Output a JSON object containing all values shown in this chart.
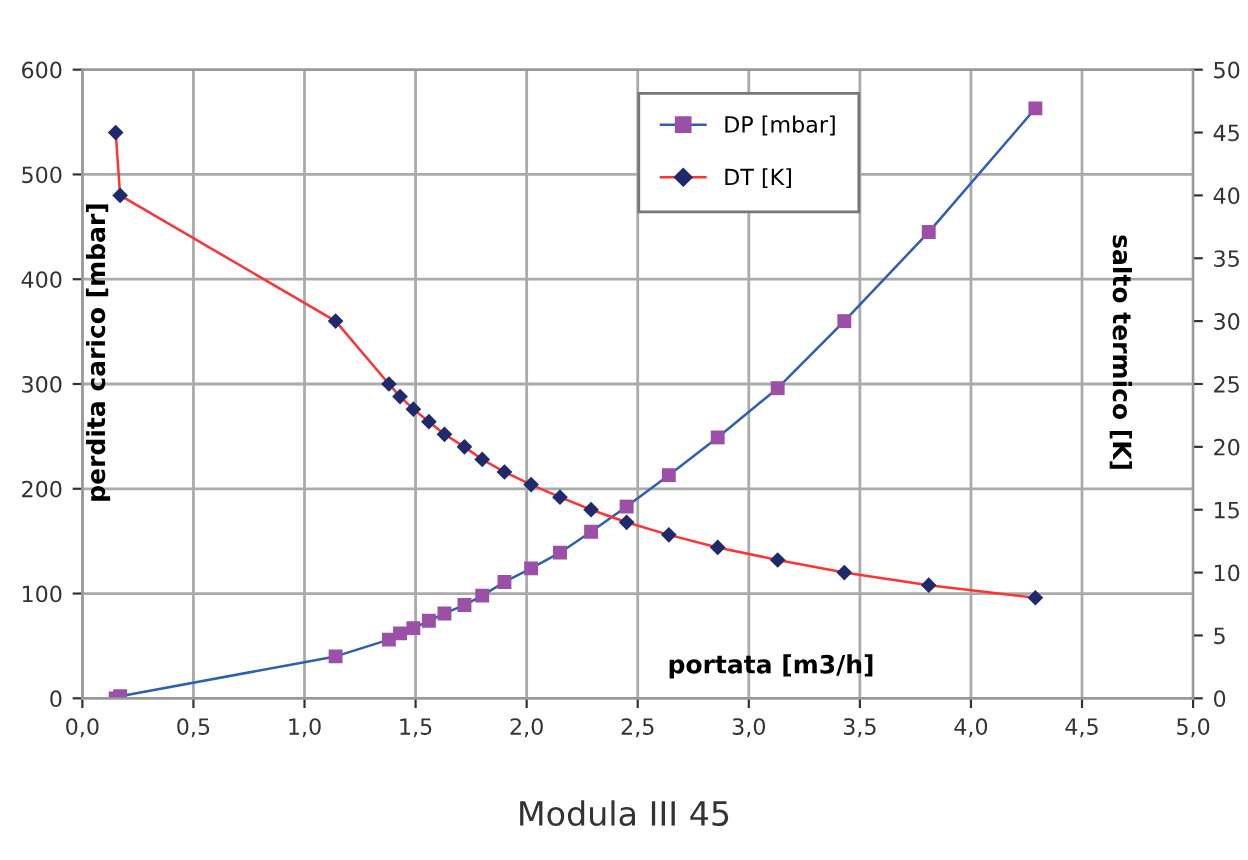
{
  "chart_data": {
    "type": "line",
    "title": "Modula III 45",
    "xlabel": "portata [m3/h]",
    "ylabel": "perdita carico [mbar]",
    "y2label": "salto termico [K]",
    "x": [
      0.15,
      0.17,
      1.14,
      1.38,
      1.43,
      1.49,
      1.56,
      1.63,
      1.72,
      1.8,
      1.9,
      2.02,
      2.15,
      2.29,
      2.45,
      2.64,
      2.86,
      3.13,
      3.43,
      3.81,
      4.29
    ],
    "series": [
      {
        "name": "DP [mbar]",
        "color": "#2f5fb3",
        "colors": [
          "#9b4fa6",
          "#9b4fa6",
          "#9b4fa6",
          "#9b4fa6",
          "#9b4fa6",
          "#9b4fa6",
          "#9b4fa6",
          "#9b4fa6",
          "#9b4fa6",
          "#9b4fa6",
          "#9b4fa6",
          "#9b4fa6",
          "#9b4fa6",
          "#9b4fa6",
          "#9b4fa6",
          "#9b4fa6",
          "#9b4fa6",
          "#9b4fa6",
          "#9b4fa6",
          "#9b4fa6",
          "#9b4fa6"
        ],
        "marker": "square",
        "values": [
          0,
          2,
          40,
          56,
          62,
          67,
          74,
          81,
          89,
          98,
          111,
          124,
          139,
          159,
          183,
          213,
          249,
          296,
          360,
          445,
          563
        ]
      },
      {
        "name": "DT [K]",
        "color": "#ff3333",
        "colors": [
          "#1f2a6b",
          "#1f2a6b",
          "#1f2a6b",
          "#1f2a6b",
          "#1f2a6b",
          "#1f2a6b",
          "#1f2a6b",
          "#1f2a6b",
          "#1f2a6b",
          "#1f2a6b",
          "#1f2a6b",
          "#1f2a6b",
          "#1f2a6b",
          "#1f2a6b",
          "#1f2a6b",
          "#1f2a6b",
          "#1f2a6b",
          "#1f2a6b",
          "#1f2a6b",
          "#1f2a6b",
          "#1f2a6b"
        ],
        "marker": "diamond",
        "axis": "y2",
        "values": [
          45,
          40,
          30,
          25,
          24,
          23,
          22,
          21,
          20,
          19,
          18,
          17,
          16,
          15,
          14,
          13,
          12,
          11,
          10,
          9,
          8
        ]
      }
    ],
    "xlim": [
      0,
      5.0
    ],
    "xticks": [
      {
        "value": 0,
        "label": "0,0"
      },
      {
        "value": 0.5,
        "label": "0,5"
      },
      {
        "value": 1.0,
        "label": "1,0"
      },
      {
        "value": 1.5,
        "label": "1,5"
      },
      {
        "value": 2.0,
        "label": "2,0"
      },
      {
        "value": 2.5,
        "label": "2,5"
      },
      {
        "value": 3.0,
        "label": "3,0"
      },
      {
        "value": 3.5,
        "label": "3,5"
      },
      {
        "value": 4.0,
        "label": "4,0"
      },
      {
        "value": 4.5,
        "label": "4,5"
      },
      {
        "value": 5.0,
        "label": "5,0"
      }
    ],
    "ylim": [
      0,
      600
    ],
    "yticks": [
      0,
      100,
      200,
      300,
      400,
      500,
      600
    ],
    "y2lim": [
      0,
      50
    ],
    "y2ticks": [
      0,
      5,
      10,
      15,
      20,
      25,
      30,
      35,
      40,
      45,
      50
    ],
    "grid": true,
    "legend": "top",
    "line_style": "solid"
  }
}
